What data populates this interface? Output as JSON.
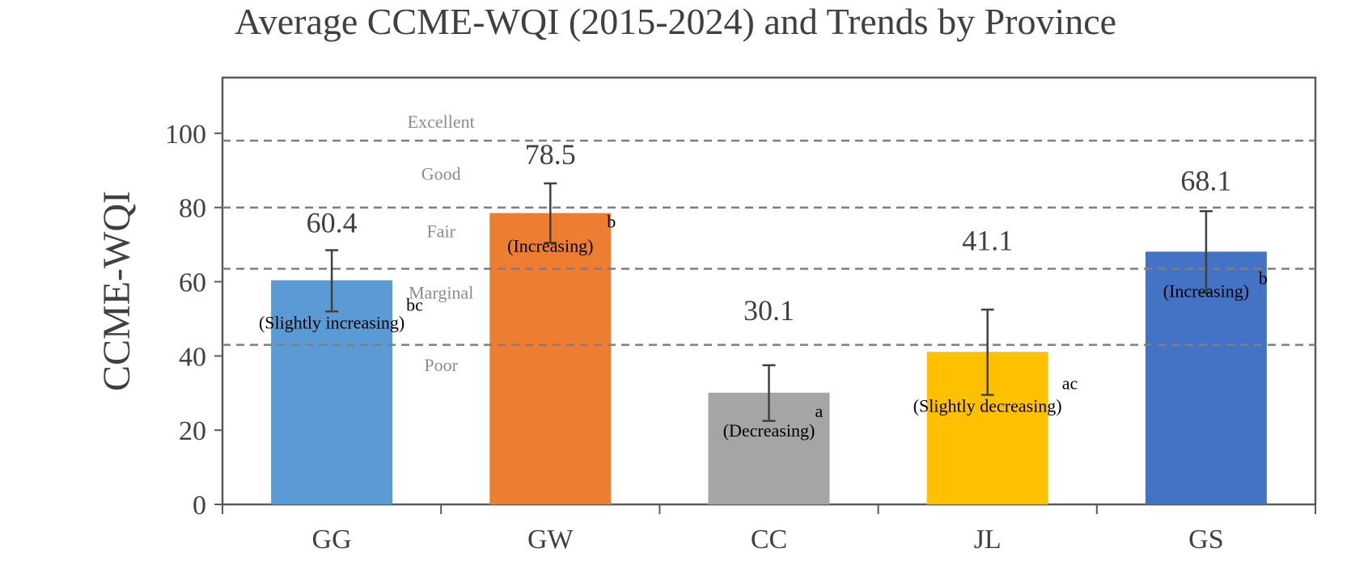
{
  "chart_data": {
    "type": "bar",
    "title": "Average CCME-WQI (2015-2024) and Trends by Province",
    "xlabel": "",
    "ylabel": "CCME-WQI",
    "ylim": [
      0,
      115
    ],
    "yticks": [
      0,
      20,
      40,
      60,
      80,
      100
    ],
    "categories": [
      "GG",
      "GW",
      "CC",
      "JL",
      "GS"
    ],
    "values": [
      60.4,
      78.5,
      30.1,
      41.1,
      68.1
    ],
    "value_labels": [
      "60.4",
      "78.5",
      "30.1",
      "41.1",
      "68.1"
    ],
    "error_low": [
      52.0,
      70.5,
      22.5,
      29.5,
      57.0
    ],
    "error_high": [
      68.5,
      86.5,
      37.5,
      52.5,
      79.0
    ],
    "trends": [
      "(Slightly increasing)",
      "(Increasing)",
      "(Decreasing)",
      "(Slightly decreasing)",
      "(Increasing)"
    ],
    "significance": [
      "bc",
      "b",
      "a",
      "ac",
      "b"
    ],
    "colors": [
      "#5b9bd5",
      "#ed7d31",
      "#a5a5a5",
      "#ffc000",
      "#4472c4"
    ],
    "thresholds": [
      98,
      80,
      63.5,
      43
    ],
    "bands": [
      {
        "label": "Excellent",
        "value": 103
      },
      {
        "label": "Good",
        "value": 89
      },
      {
        "label": "Fair",
        "value": 73.5
      },
      {
        "label": "Marginal",
        "value": 57
      },
      {
        "label": "Poor",
        "value": 37.5
      }
    ],
    "grid": false,
    "legend": "none"
  }
}
